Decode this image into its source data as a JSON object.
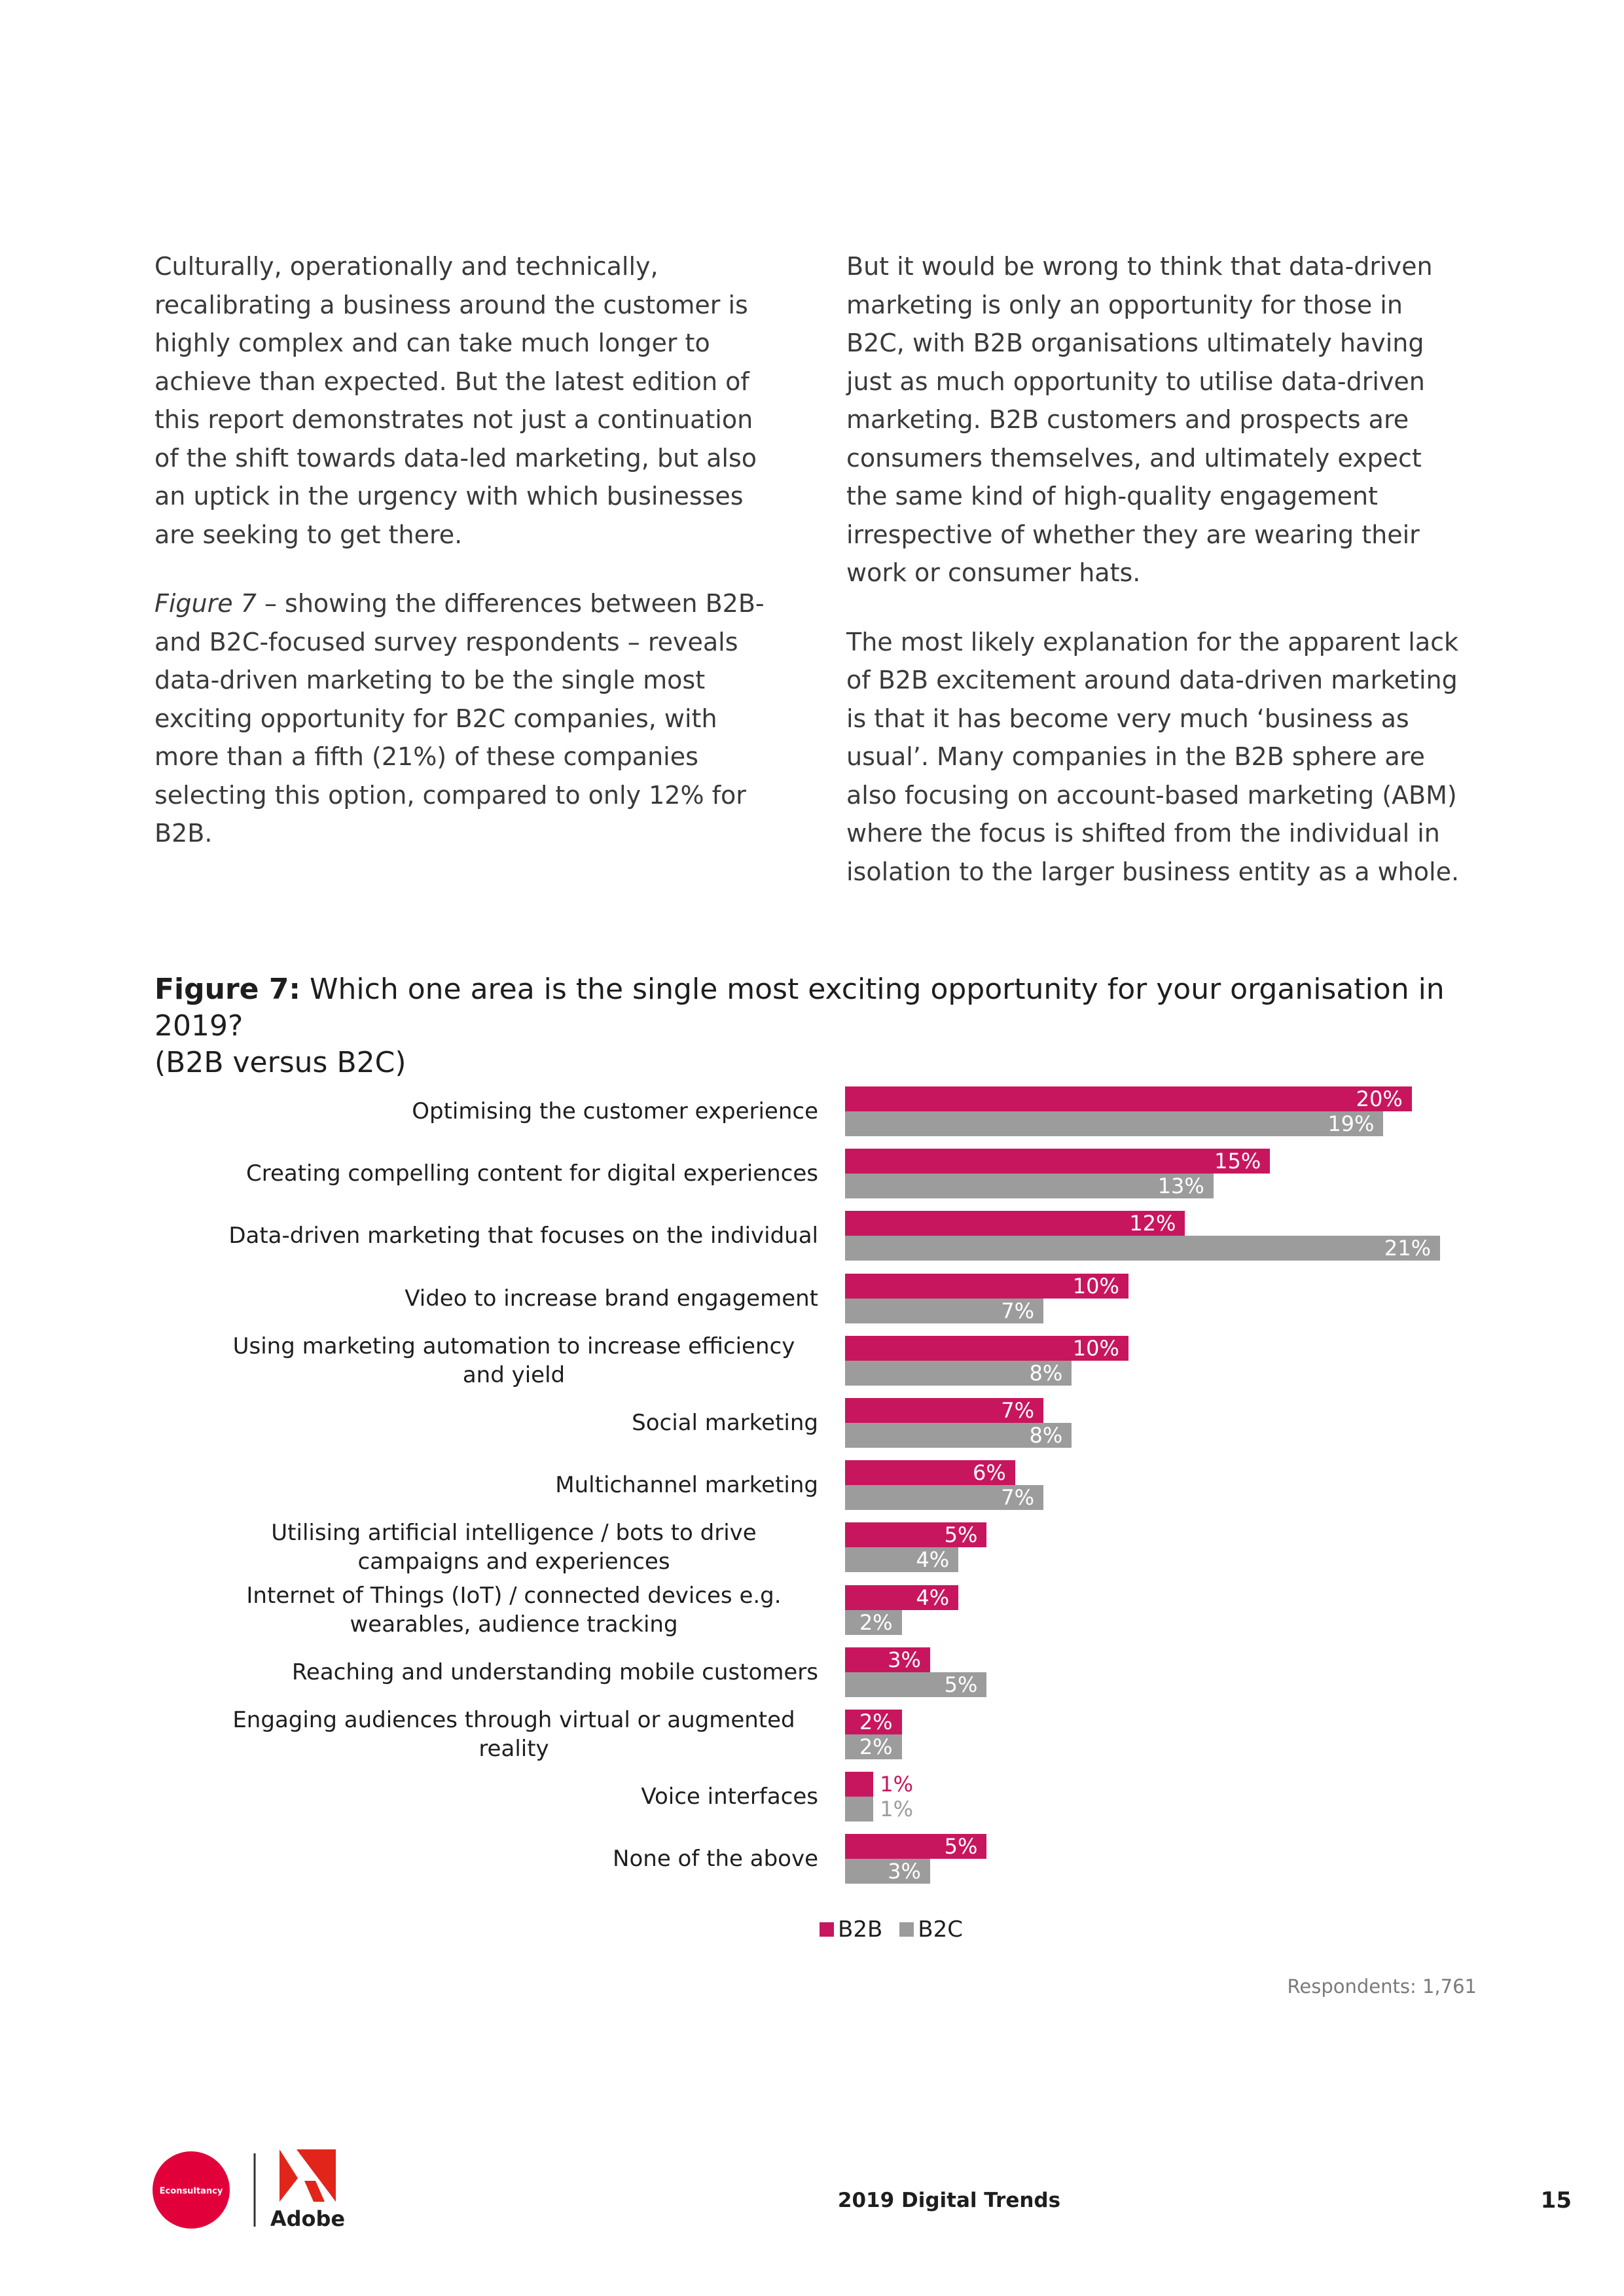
{
  "body": {
    "left_column": [
      {
        "text": "Culturally, operationally and technically, recalibrating a business around the customer is highly complex and can take much longer to achieve than expected. But the latest edition of this report demonstrates not just a continuation of the shift towards data-led marketing, but also an uptick in the urgency with which businesses are seeking to get there."
      },
      {
        "italic": "Figure 7",
        "text": " – showing the differences between B2B- and B2C-focused survey respondents – reveals data-driven marketing to be the single most exciting opportunity for B2C companies, with more than a fifth (21%) of these companies selecting this option, compared to only 12% for B2B."
      }
    ],
    "right_column": [
      {
        "text": "But it would be wrong to think that data-driven marketing is only an opportunity for those in B2C, with B2B organisations ultimately having just as much opportunity to utilise data-driven marketing. B2B customers and prospects are consumers themselves, and ultimately expect the same kind of high-quality engagement irrespective of whether they are wearing their work or consumer hats."
      },
      {
        "text": "The most likely explanation for the apparent lack of B2B excitement around data-driven marketing is that it has become very much ‘business as usual’. Many companies in the B2B sphere are also focusing on account-based marketing (ABM) where the focus is shifted from the individual in isolation to the larger business entity as a whole."
      }
    ]
  },
  "chart_data": {
    "type": "bar",
    "orientation": "horizontal",
    "title_prefix": "Figure 7:",
    "title": "Which one area is the single most exciting opportunity for your organisation in 2019?",
    "subtitle": "(B2B versus B2C)",
    "categories": [
      "Optimising the customer experience",
      "Creating compelling content for digital experiences",
      "Data-driven marketing that focuses on the individual",
      "Video to increase brand engagement",
      "Using marketing automation to increase efficiency and yield",
      "Social marketing",
      "Multichannel marketing",
      "Utilising artificial intelligence / bots to drive campaigns and experiences",
      "Internet of Things (IoT) / connected devices e.g. wearables, audience tracking",
      "Reaching and understanding mobile customers",
      "Engaging audiences through virtual or augmented reality",
      "Voice interfaces",
      "None of the above"
    ],
    "series": [
      {
        "name": "B2B",
        "color": "#c8165e",
        "values": [
          20,
          15,
          12,
          10,
          10,
          7,
          6,
          5,
          4,
          3,
          2,
          1,
          5
        ],
        "value_labels": [
          "20%",
          "15%",
          "12%",
          "10%",
          "10%",
          "7%",
          "6%",
          "5%",
          "4%",
          "3%",
          "2%",
          "1%",
          "5%"
        ]
      },
      {
        "name": "B2C",
        "color": "#9c9c9c",
        "values": [
          19,
          13,
          21,
          7,
          8,
          8,
          7,
          4,
          2,
          5,
          2,
          1,
          3
        ],
        "value_labels": [
          "19%",
          "13%",
          "21%",
          "7%",
          "8%",
          "8%",
          "7%",
          "4%",
          "2%",
          "5%",
          "2%",
          "1%",
          "3%"
        ]
      }
    ],
    "legend": "bottom",
    "note": "Respondents: 1,761"
  },
  "footer": {
    "logo_left": "Econsultancy",
    "logo_right": "Adobe",
    "publication": "2019 Digital Trends",
    "page_number": "15"
  }
}
